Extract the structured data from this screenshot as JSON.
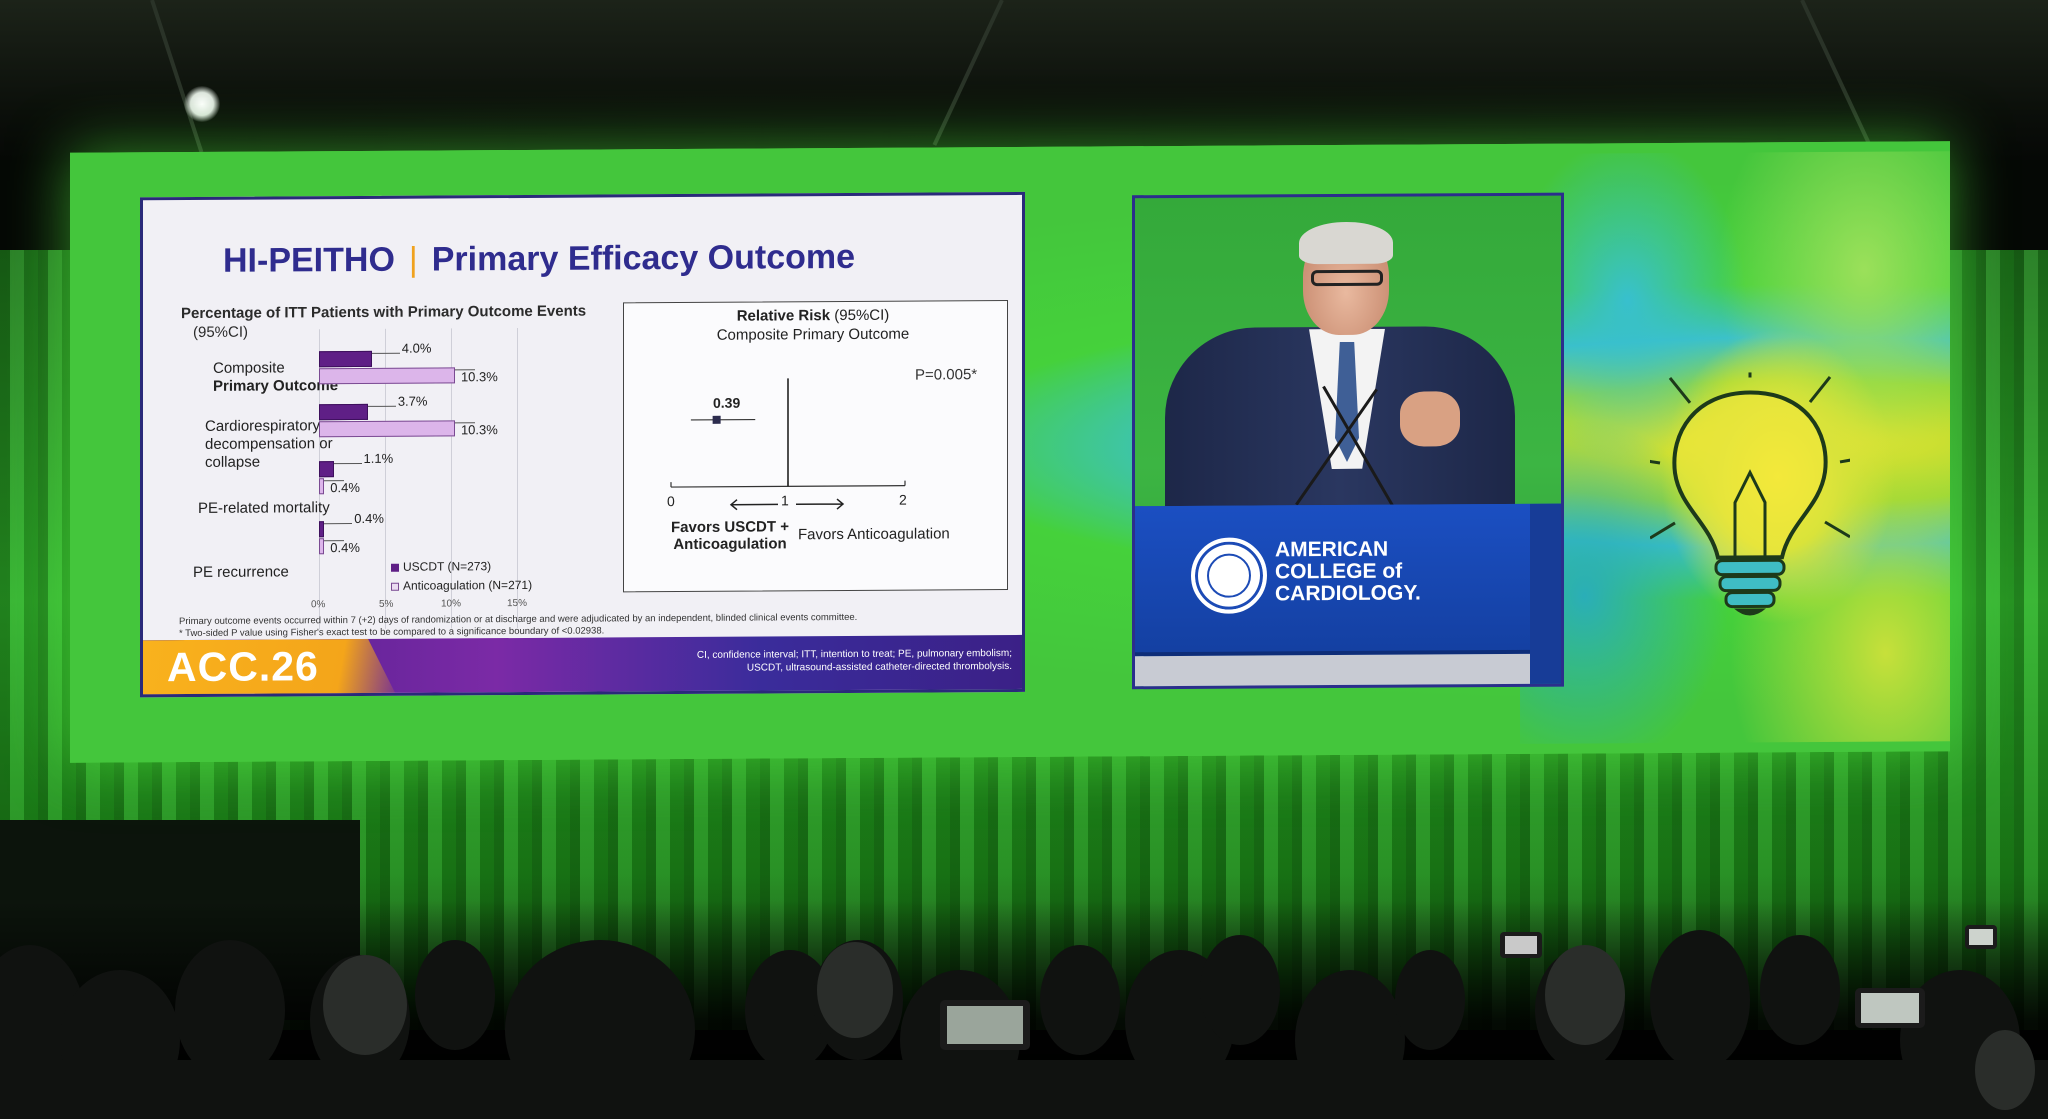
{
  "slide": {
    "title_study": "HI-PEITHO",
    "title_topic": "Primary Efficacy Outcome",
    "bar_chart_header": "Percentage of ITT Patients with Primary Outcome Events",
    "bar_chart_header_ci": "(95%CI)",
    "categories": [
      {
        "label_line1": "Composite",
        "label_line2": "Primary Outcome",
        "label_line3": ""
      },
      {
        "label_line1": "Cardiorespiratory",
        "label_line2": "decompensation or",
        "label_line3": "collapse"
      },
      {
        "label_line1": "PE-related mortality",
        "label_line2": "",
        "label_line3": ""
      },
      {
        "label_line1": "PE recurrence",
        "label_line2": "",
        "label_line3": ""
      }
    ],
    "value_labels": [
      {
        "uscdt": "4.0%",
        "anticoag": "10.3%"
      },
      {
        "uscdt": "3.7%",
        "anticoag": "10.3%"
      },
      {
        "uscdt": "1.1%",
        "anticoag": "0.4%"
      },
      {
        "uscdt": "0.4%",
        "anticoag": "0.4%"
      }
    ],
    "axis_ticks": [
      "0%",
      "5%",
      "10%",
      "15%"
    ],
    "legend": {
      "uscdt": "USCDT (N=273)",
      "anticoag": "Anticoagulation (N=271)"
    },
    "colors": {
      "uscdt": "#5f1f86",
      "anticoag": "#dcb5ea",
      "title": "#2f2c8e",
      "accent": "#f0a21e"
    },
    "rr_title_bold": "Relative Risk",
    "rr_title_ci": "(95%CI)",
    "rr_subtitle": "Composite Primary Outcome",
    "rr_p_value": "P=0.005*",
    "rr_point_label": "0.39",
    "rr_ticks": [
      "0",
      "1",
      "2"
    ],
    "rr_favors_left_line1": "Favors USCDT +",
    "rr_favors_left_line2": "Anticoagulation",
    "rr_favors_right": "Favors Anticoagulation",
    "footnote1": "Primary outcome events occurred within 7 (+2) days of randomization or at discharge and were adjudicated by an independent, blinded clinical events committee.",
    "footnote2": "* Two-sided P value using Fisher's exact test to be compared to a significance boundary of <0.02938.",
    "footer_logo": "ACC.26",
    "footer_text_line1": "CI, confidence interval; ITT, intention to treat; PE, pulmonary embolism;",
    "footer_text_line2": "USCDT, ultrasound-assisted catheter-directed thrombolysis."
  },
  "chart_data": [
    {
      "type": "bar",
      "title": "Percentage of ITT Patients with Primary Outcome Events",
      "categories": [
        "Composite Primary Outcome",
        "Cardiorespiratory decompensation or collapse",
        "PE-related mortality",
        "PE recurrence"
      ],
      "series": [
        {
          "name": "USCDT (N=273)",
          "values": [
            4.0,
            3.7,
            1.1,
            0.4
          ]
        },
        {
          "name": "Anticoagulation (N=271)",
          "values": [
            10.3,
            10.3,
            0.4,
            0.4
          ]
        }
      ],
      "xlim": [
        0,
        15
      ],
      "orientation": "horizontal",
      "legend": "bottom-right"
    },
    {
      "type": "scatter",
      "title": "Relative Risk (95%CI)",
      "points": [
        {
          "label": "Composite Primary Outcome",
          "x": 0.39,
          "ci": [
            0.17,
            0.72
          ]
        }
      ],
      "xlim": [
        0,
        2
      ],
      "reference_line": 1,
      "annotation": "P=0.005*"
    }
  ],
  "podium": {
    "org_line1": "AMERICAN",
    "org_line2": "COLLEGE of",
    "org_line3": "CARDIOLOGY."
  }
}
